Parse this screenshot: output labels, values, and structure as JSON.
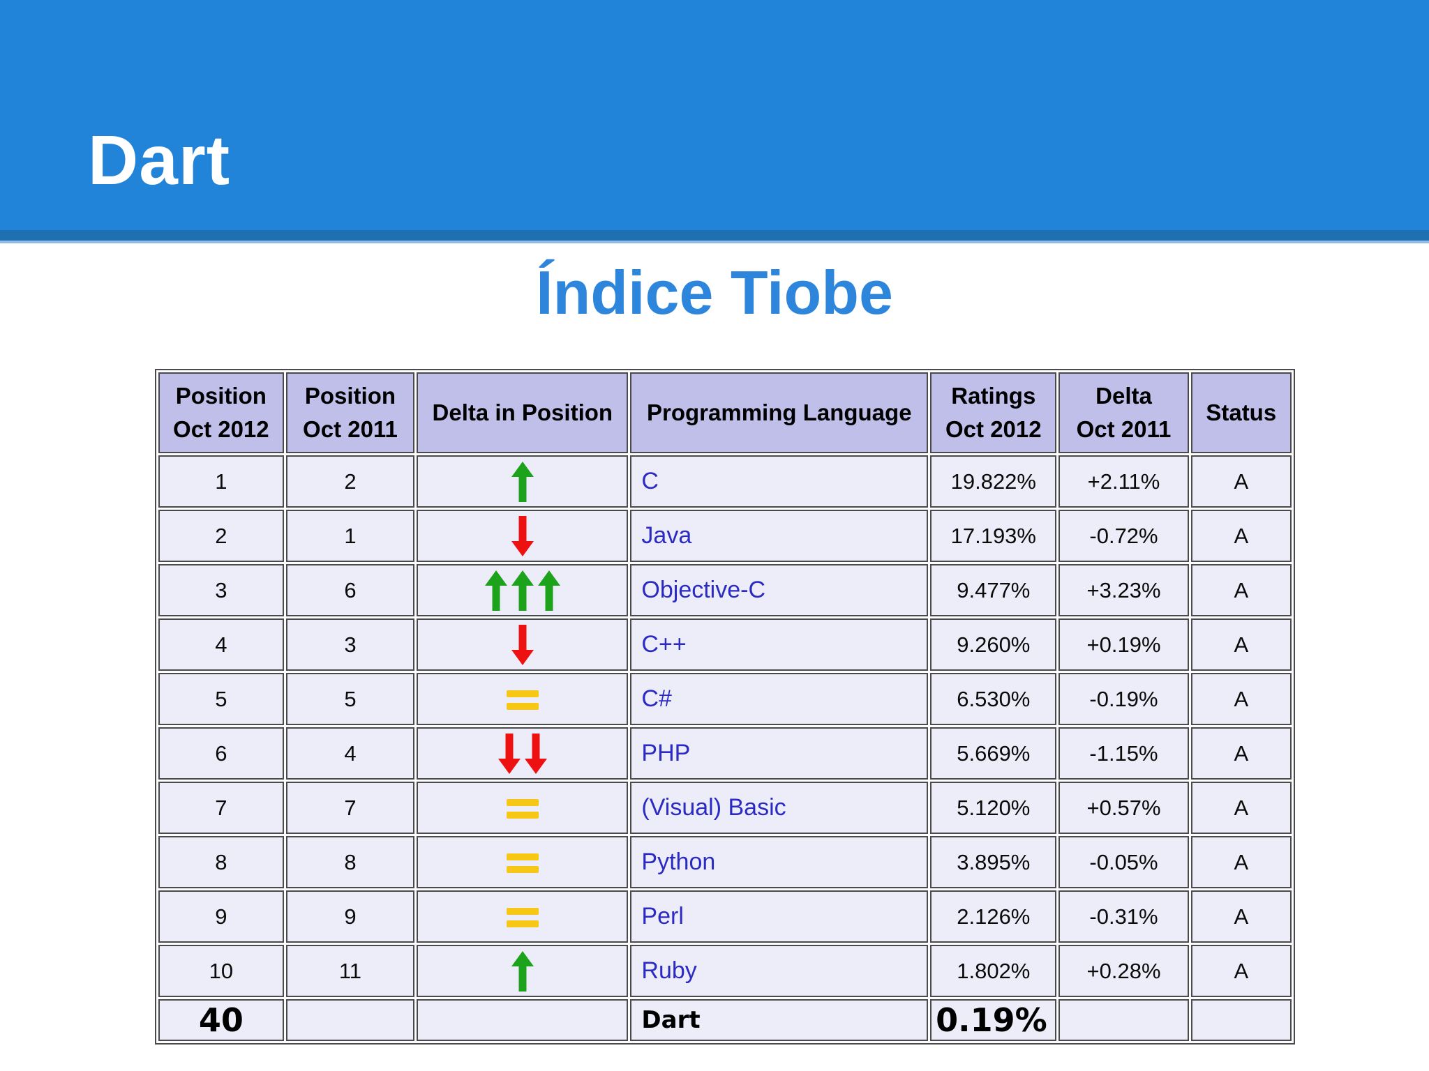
{
  "slide": {
    "title": "Dart"
  },
  "main": {
    "heading": "Índice Tiobe"
  },
  "colors": {
    "header_band_blue": "#2184D9",
    "header_strip_blue": "#1F6FB3",
    "heading_blue": "#2E86DC",
    "table_header_bg": "#BFBFEA",
    "table_cell_bg": "#EDEDF9",
    "table_border": "#4A4A4A",
    "language_link_blue": "#2B2BC3",
    "arrow_up_green": "#1DA31B",
    "arrow_down_red": "#EE1111",
    "equal_yellow": "#F7C716"
  },
  "table": {
    "columns": [
      {
        "lines": [
          "Position",
          "Oct 2012"
        ]
      },
      {
        "lines": [
          "Position",
          "Oct 2011"
        ]
      },
      {
        "lines": [
          "Delta in Position"
        ]
      },
      {
        "lines": [
          "Programming Language"
        ]
      },
      {
        "lines": [
          "Ratings",
          "Oct 2012"
        ]
      },
      {
        "lines": [
          "Delta",
          "Oct 2011"
        ]
      },
      {
        "lines": [
          "Status"
        ]
      }
    ],
    "rows": [
      {
        "position_oct_2012": "1",
        "position_oct_2011": "2",
        "delta_in_position": {
          "dir": "up",
          "count": 1
        },
        "programming_language": "C",
        "ratings_oct_2012": "19.822%",
        "delta_oct_2011": "+2.11%",
        "status": "A",
        "highlight": false
      },
      {
        "position_oct_2012": "2",
        "position_oct_2011": "1",
        "delta_in_position": {
          "dir": "down",
          "count": 1
        },
        "programming_language": "Java",
        "ratings_oct_2012": "17.193%",
        "delta_oct_2011": "-0.72%",
        "status": "A",
        "highlight": false
      },
      {
        "position_oct_2012": "3",
        "position_oct_2011": "6",
        "delta_in_position": {
          "dir": "up",
          "count": 3
        },
        "programming_language": "Objective-C",
        "ratings_oct_2012": "9.477%",
        "delta_oct_2011": "+3.23%",
        "status": "A",
        "highlight": false
      },
      {
        "position_oct_2012": "4",
        "position_oct_2011": "3",
        "delta_in_position": {
          "dir": "down",
          "count": 1
        },
        "programming_language": "C++",
        "ratings_oct_2012": "9.260%",
        "delta_oct_2011": "+0.19%",
        "status": "A",
        "highlight": false
      },
      {
        "position_oct_2012": "5",
        "position_oct_2011": "5",
        "delta_in_position": {
          "dir": "equal",
          "count": 1
        },
        "programming_language": "C#",
        "ratings_oct_2012": "6.530%",
        "delta_oct_2011": "-0.19%",
        "status": "A",
        "highlight": false
      },
      {
        "position_oct_2012": "6",
        "position_oct_2011": "4",
        "delta_in_position": {
          "dir": "down",
          "count": 2
        },
        "programming_language": "PHP",
        "ratings_oct_2012": "5.669%",
        "delta_oct_2011": "-1.15%",
        "status": "A",
        "highlight": false
      },
      {
        "position_oct_2012": "7",
        "position_oct_2011": "7",
        "delta_in_position": {
          "dir": "equal",
          "count": 1
        },
        "programming_language": "(Visual) Basic",
        "ratings_oct_2012": "5.120%",
        "delta_oct_2011": "+0.57%",
        "status": "A",
        "highlight": false
      },
      {
        "position_oct_2012": "8",
        "position_oct_2011": "8",
        "delta_in_position": {
          "dir": "equal",
          "count": 1
        },
        "programming_language": "Python",
        "ratings_oct_2012": "3.895%",
        "delta_oct_2011": "-0.05%",
        "status": "A",
        "highlight": false
      },
      {
        "position_oct_2012": "9",
        "position_oct_2011": "9",
        "delta_in_position": {
          "dir": "equal",
          "count": 1
        },
        "programming_language": "Perl",
        "ratings_oct_2012": "2.126%",
        "delta_oct_2011": "-0.31%",
        "status": "A",
        "highlight": false
      },
      {
        "position_oct_2012": "10",
        "position_oct_2011": "11",
        "delta_in_position": {
          "dir": "up",
          "count": 1
        },
        "programming_language": "Ruby",
        "ratings_oct_2012": "1.802%",
        "delta_oct_2011": "+0.28%",
        "status": "A",
        "highlight": false
      },
      {
        "position_oct_2012": "40",
        "position_oct_2011": "",
        "delta_in_position": {
          "dir": "none",
          "count": 0
        },
        "programming_language": "Dart",
        "ratings_oct_2012": "0.19%",
        "delta_oct_2011": "",
        "status": "",
        "highlight": true
      }
    ]
  }
}
